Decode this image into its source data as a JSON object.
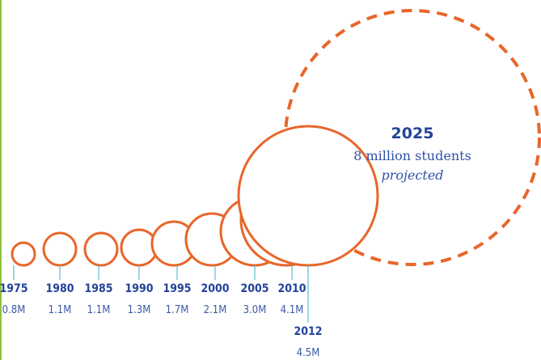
{
  "chart_data": {
    "type": "bubble-timeline",
    "unit": "M",
    "points": [
      {
        "year": "1975",
        "label": "0.8M",
        "value": 0.8
      },
      {
        "year": "1980",
        "label": "1.1M",
        "value": 1.1
      },
      {
        "year": "1985",
        "label": "1.1M",
        "value": 1.1
      },
      {
        "year": "1990",
        "label": "1.3M",
        "value": 1.3
      },
      {
        "year": "1995",
        "label": "1.7M",
        "value": 1.7
      },
      {
        "year": "2000",
        "label": "2.1M",
        "value": 2.1
      },
      {
        "year": "2005",
        "label": "3.0M",
        "value": 3.0
      },
      {
        "year": "2010",
        "label": "4.1M",
        "value": 4.1
      },
      {
        "year": "2012",
        "label": "4.5M",
        "value": 4.5
      }
    ],
    "projection": {
      "year": "2025",
      "value": 8,
      "line1": "8 million students",
      "line2": "projected"
    },
    "colors": {
      "circle_stroke": "#e8662a",
      "year_text": "#23439a",
      "value_text": "#3c5aa8",
      "tick": "#5bbcd6",
      "left_rule": "#8fc13e"
    }
  }
}
